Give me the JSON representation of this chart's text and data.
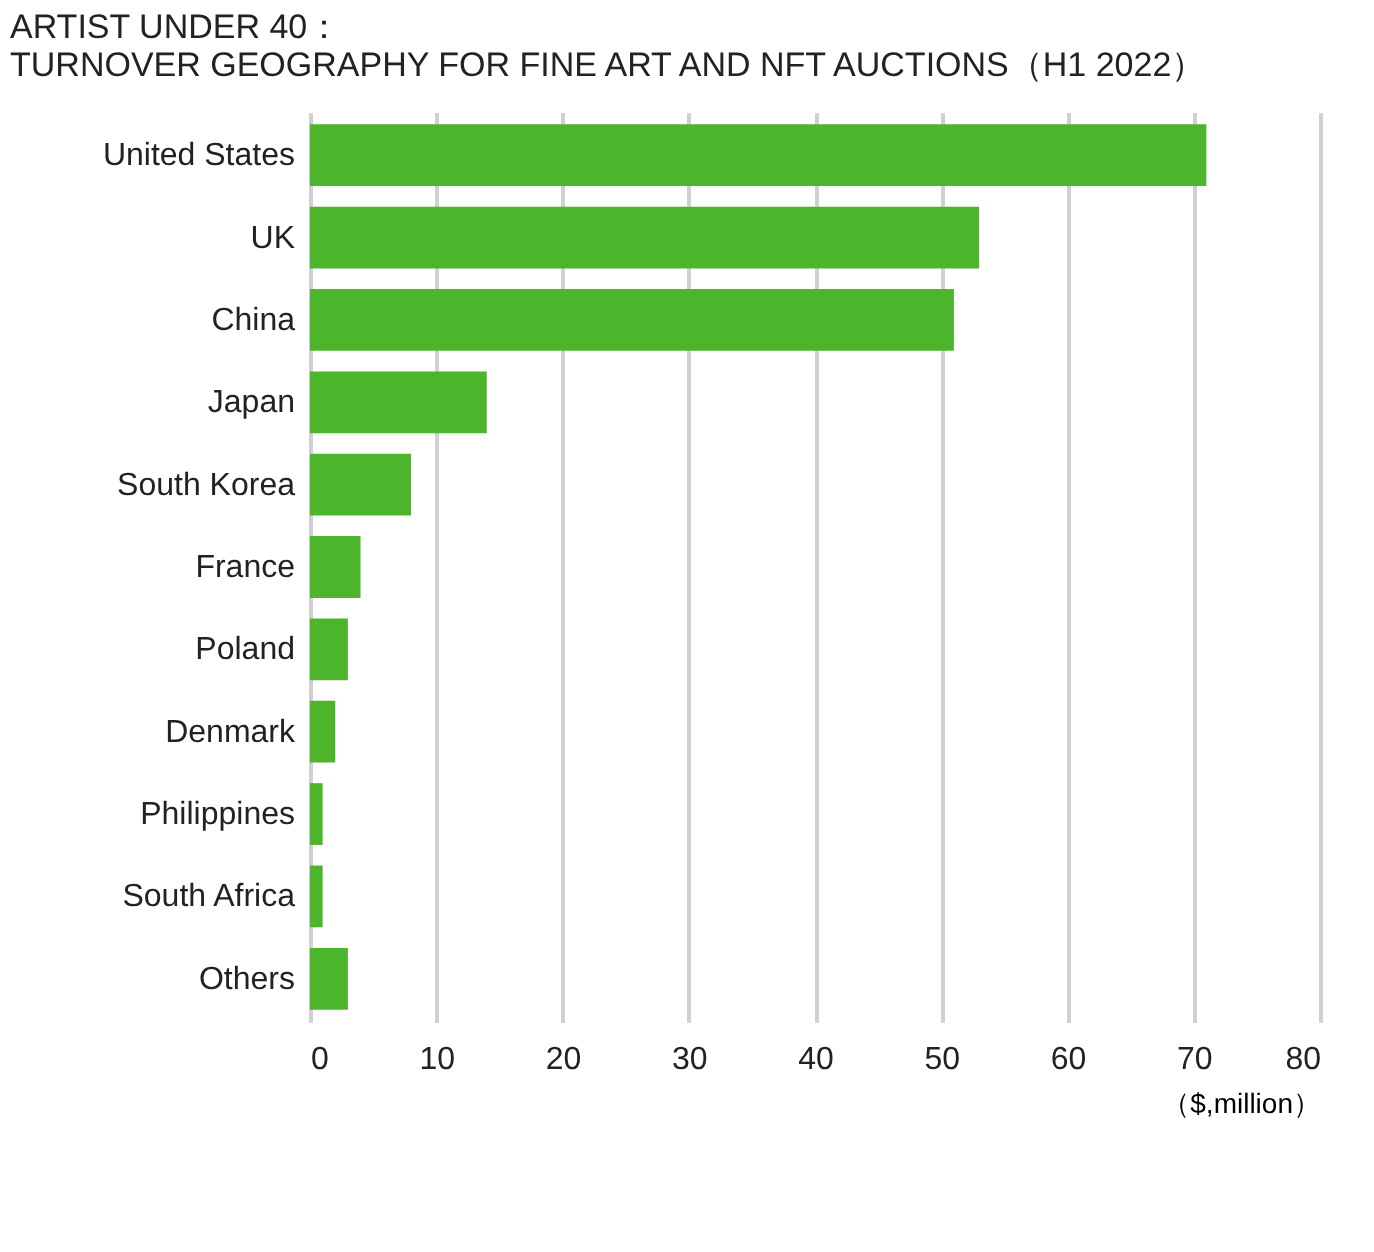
{
  "chart_data": {
    "type": "bar",
    "orientation": "horizontal",
    "title": "ARTIST UNDER 40：",
    "subtitle": "TURNOVER GEOGRAPHY FOR FINE ART AND NFT AUCTIONS（H1 2022）",
    "xlabel": "（$,million）",
    "categories": [
      "United States",
      "UK",
      "China",
      "Japan",
      "South Korea",
      "France",
      "Poland",
      "Denmark",
      "Philippines",
      "South Africa",
      "Others"
    ],
    "values": [
      71,
      53,
      51,
      14,
      8,
      4,
      3,
      2,
      1,
      1,
      3
    ],
    "color": "#4cb52c",
    "xlim": [
      0,
      80
    ],
    "xticks": [
      0,
      10,
      20,
      30,
      40,
      50,
      60,
      70,
      80
    ],
    "grid": "x"
  }
}
